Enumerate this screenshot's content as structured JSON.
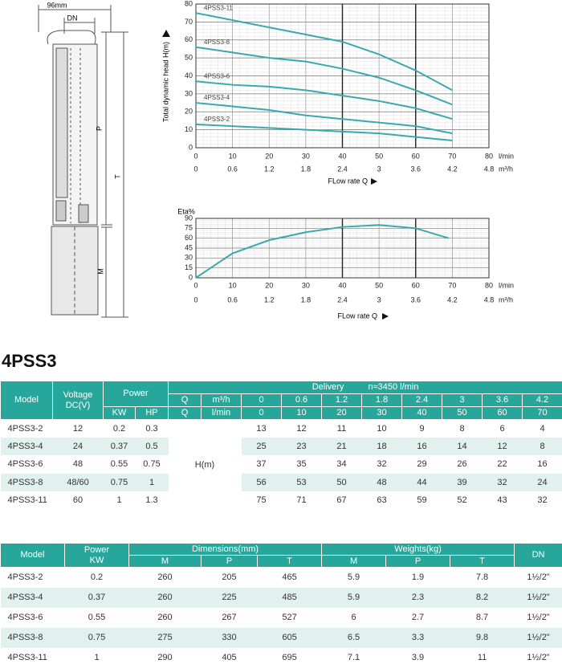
{
  "drawing": {
    "width": "96mm",
    "dn": "DN",
    "p": "P",
    "t": "T",
    "m": "M"
  },
  "chart_data": [
    {
      "type": "line",
      "ylabel": "Total dynamic head H(m)",
      "xlabel": "FLow rate Q",
      "x_unit": "l/min",
      "x2_unit": "m³/h",
      "xlim": [
        0,
        80
      ],
      "xticks": [
        0,
        10,
        20,
        30,
        40,
        50,
        60,
        70,
        80
      ],
      "x2lim": [
        0,
        4.8
      ],
      "x2ticks": [
        0,
        0.6,
        1.2,
        1.8,
        2.4,
        3,
        3.6,
        4.2,
        4.8
      ],
      "ylim": [
        0,
        80
      ],
      "yticks": [
        0,
        10,
        20,
        30,
        40,
        50,
        60,
        70,
        80
      ],
      "grid": true,
      "range_lines": [
        40,
        60
      ],
      "x": [
        0,
        10,
        20,
        30,
        40,
        50,
        60,
        70
      ],
      "series": [
        {
          "name": "4PSS3-11",
          "color": "#3aa8b2",
          "values": [
            75,
            71,
            67,
            63,
            59,
            52,
            43,
            32
          ]
        },
        {
          "name": "4PSS3-8",
          "color": "#3aa8b2",
          "values": [
            56,
            53,
            50,
            48,
            44,
            39,
            32,
            24
          ]
        },
        {
          "name": "4PSS3-6",
          "color": "#3aa8b2",
          "values": [
            37,
            35,
            34,
            32,
            29,
            26,
            22,
            16
          ]
        },
        {
          "name": "4PSS3-4",
          "color": "#3aa8b2",
          "values": [
            25,
            23,
            21,
            18,
            16,
            14,
            12,
            8
          ]
        },
        {
          "name": "4PSS3-2",
          "color": "#3aa8b2",
          "values": [
            13,
            12,
            11,
            10,
            9,
            8,
            6,
            4
          ]
        }
      ]
    },
    {
      "type": "line",
      "ylabel": "Eta%",
      "xlabel": "FLow rate Q",
      "x_unit": "l/min",
      "x2_unit": "m³/h",
      "xlim": [
        0,
        80
      ],
      "xticks": [
        0,
        10,
        20,
        30,
        40,
        50,
        60,
        70,
        80
      ],
      "x2lim": [
        0,
        4.8
      ],
      "x2ticks": [
        0,
        0.6,
        1.2,
        1.8,
        2.4,
        3,
        3.6,
        4.2,
        4.8
      ],
      "ylim": [
        0,
        90
      ],
      "yticks": [
        0,
        15,
        30,
        45,
        60,
        75,
        90
      ],
      "grid": true,
      "range_lines": [
        40,
        60
      ],
      "x": [
        0,
        10,
        20,
        30,
        40,
        50,
        60,
        69
      ],
      "color": "#3aa8b2",
      "values": [
        0,
        37,
        57,
        69,
        77,
        80,
        75,
        60
      ]
    }
  ],
  "title": "4PSS3",
  "table1": {
    "header": {
      "model": "Model",
      "voltage": "Voltage DC(V)",
      "power": "Power",
      "kw": "KW",
      "hp": "HP",
      "delivery": "Delivery",
      "speed": "n≈3450 l/min"
    },
    "q_rows": [
      [
        "Q",
        "m³/h",
        0,
        0.6,
        1.2,
        1.8,
        2.4,
        3,
        3.6,
        4.2
      ],
      [
        "Q",
        "l/min",
        0,
        10,
        20,
        30,
        40,
        50,
        60,
        70
      ]
    ],
    "h_label": "H(m)",
    "rows": [
      {
        "model": "4PSS3-2",
        "voltage": 12,
        "kw": 0.2,
        "hp": 0.3,
        "heads": [
          13,
          12,
          11,
          10,
          9,
          8,
          6,
          4
        ]
      },
      {
        "model": "4PSS3-4",
        "voltage": 24,
        "kw": 0.37,
        "hp": 0.5,
        "heads": [
          25,
          23,
          21,
          18,
          16,
          14,
          12,
          8
        ]
      },
      {
        "model": "4PSS3-6",
        "voltage": 48,
        "kw": 0.55,
        "hp": 0.75,
        "heads": [
          37,
          35,
          34,
          32,
          29,
          26,
          22,
          16
        ]
      },
      {
        "model": "4PSS3-8",
        "voltage": "48/60",
        "kw": 0.75,
        "hp": 1,
        "heads": [
          56,
          53,
          50,
          48,
          44,
          39,
          32,
          24
        ]
      },
      {
        "model": "4PSS3-11",
        "voltage": 60,
        "kw": 1,
        "hp": 1.3,
        "heads": [
          75,
          71,
          67,
          63,
          59,
          52,
          43,
          32
        ]
      }
    ]
  },
  "table2": {
    "header": {
      "model": "Model",
      "power": "Power",
      "kw": "KW",
      "dimensions": "Dimensions(mm)",
      "weights": "Weights(kg)",
      "dn": "DN",
      "sub": [
        "M",
        "P",
        "T",
        "M",
        "P",
        "T"
      ]
    },
    "rows": [
      {
        "model": "4PSS3-2",
        "kw": 0.2,
        "dims": [
          260,
          205,
          465
        ],
        "weights": [
          5.9,
          1.9,
          7.8
        ],
        "dn": "1½/2\""
      },
      {
        "model": "4PSS3-4",
        "kw": 0.37,
        "dims": [
          260,
          225,
          485
        ],
        "weights": [
          5.9,
          2.3,
          8.2
        ],
        "dn": "1½/2\""
      },
      {
        "model": "4PSS3-6",
        "kw": 0.55,
        "dims": [
          260,
          267,
          527
        ],
        "weights": [
          6,
          2.7,
          8.7
        ],
        "dn": "1½/2\""
      },
      {
        "model": "4PSS3-8",
        "kw": 0.75,
        "dims": [
          275,
          330,
          605
        ],
        "weights": [
          6.5,
          3.3,
          9.8
        ],
        "dn": "1½/2\""
      },
      {
        "model": "4PSS3-11",
        "kw": 1,
        "dims": [
          290,
          405,
          695
        ],
        "weights": [
          7.1,
          3.9,
          11
        ],
        "dn": "1½/2\""
      }
    ]
  }
}
